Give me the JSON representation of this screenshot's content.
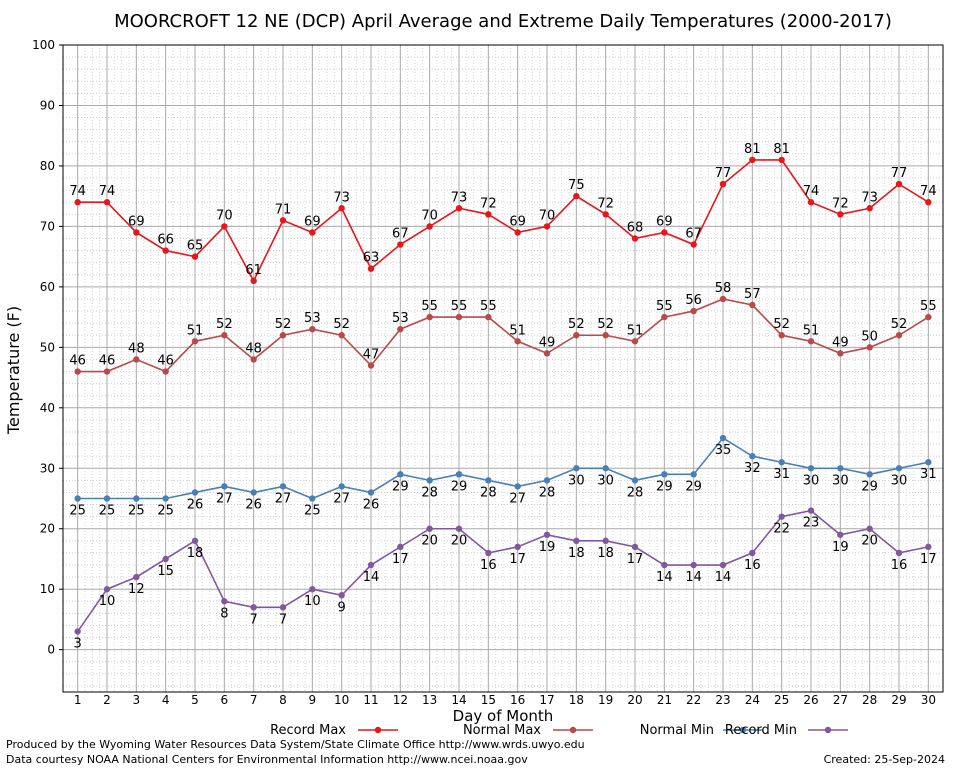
{
  "chart_data": {
    "type": "line",
    "title": "MOORCROFT 12 NE (DCP) April Average and Extreme Daily Temperatures (2000-2017)",
    "xlabel": "Day of Month",
    "ylabel": "Temperature (F)",
    "x": [
      1,
      2,
      3,
      4,
      5,
      6,
      7,
      8,
      9,
      10,
      11,
      12,
      13,
      14,
      15,
      16,
      17,
      18,
      19,
      20,
      21,
      22,
      23,
      24,
      25,
      26,
      27,
      28,
      29,
      30
    ],
    "xlim": [
      0.5,
      30.5
    ],
    "ylim": [
      -7,
      100
    ],
    "yticks": [
      0,
      10,
      20,
      30,
      40,
      50,
      60,
      70,
      80,
      90,
      100
    ],
    "grid": true,
    "series": [
      {
        "name": "Record Max",
        "color": "#e8161b",
        "values": [
          74,
          74,
          69,
          66,
          65,
          70,
          61,
          71,
          69,
          73,
          63,
          67,
          70,
          73,
          72,
          69,
          70,
          75,
          72,
          68,
          69,
          67,
          77,
          81,
          81,
          74,
          72,
          73,
          77,
          74
        ]
      },
      {
        "name": "Normal Max",
        "color": "#b84a4a",
        "values": [
          46,
          46,
          48,
          46,
          51,
          52,
          48,
          52,
          53,
          52,
          47,
          53,
          55,
          55,
          55,
          51,
          49,
          52,
          52,
          51,
          55,
          56,
          58,
          57,
          52,
          51,
          49,
          50,
          52,
          55
        ]
      },
      {
        "name": "Normal Min",
        "color": "#4a7fb5",
        "values": [
          25,
          25,
          25,
          25,
          26,
          27,
          26,
          27,
          25,
          27,
          26,
          29,
          28,
          29,
          28,
          27,
          28,
          30,
          30,
          28,
          29,
          29,
          35,
          32,
          31,
          30,
          30,
          29,
          30,
          31
        ]
      },
      {
        "name": "Record Min",
        "color": "#8058a0",
        "values": [
          3,
          10,
          12,
          15,
          18,
          8,
          7,
          7,
          10,
          9,
          14,
          17,
          20,
          20,
          16,
          17,
          19,
          18,
          18,
          17,
          14,
          14,
          14,
          16,
          22,
          23,
          19,
          20,
          16,
          17
        ]
      }
    ]
  },
  "footer": {
    "line1": "Produced by the Wyoming Water Resources Data System/State Climate Office http://www.wrds.uwyo.edu",
    "line2": "Data courtesy NOAA National Centers for Environmental Information http://www.ncei.noaa.gov",
    "created": "Created:  25-Sep-2024"
  }
}
